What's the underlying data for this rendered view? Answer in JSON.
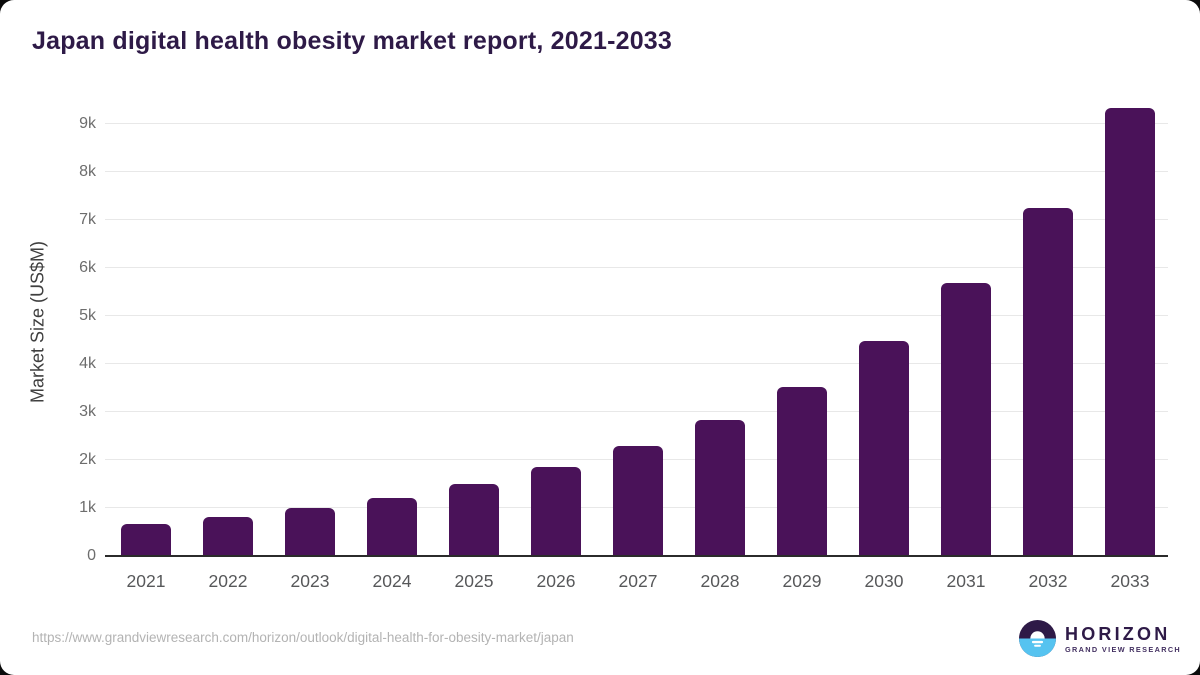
{
  "page": {
    "title": "Japan digital health obesity market report, 2021-2033"
  },
  "chart_data": {
    "type": "bar",
    "title": "Japan digital health obesity market report, 2021-2033",
    "categories": [
      "2021",
      "2022",
      "2023",
      "2024",
      "2025",
      "2026",
      "2027",
      "2028",
      "2029",
      "2030",
      "2031",
      "2032",
      "2033"
    ],
    "values": [
      670,
      810,
      1000,
      1210,
      1500,
      1860,
      2300,
      2840,
      3530,
      4470,
      5680,
      7240,
      9330
    ],
    "xlabel": "",
    "ylabel": "Market Size (US$M)",
    "yticks": [
      0,
      1000,
      2000,
      3000,
      4000,
      5000,
      6000,
      7000,
      8000,
      9000
    ],
    "ytick_labels": [
      "0",
      "1k",
      "2k",
      "3k",
      "4k",
      "5k",
      "6k",
      "7k",
      "8k",
      "9k"
    ],
    "ylim": [
      0,
      9500
    ],
    "grid": true,
    "legend": "none",
    "bar_color": "#4A1259"
  },
  "footer": {
    "source_url": "https://www.grandviewresearch.com/horizon/outlook/digital-health-for-obesity-market/japan",
    "logo": {
      "brand": "HORIZON",
      "sub_brand": "GRAND VIEW RESEARCH",
      "mark_icon": "sun-horizon-icon",
      "mark_top_color": "#2E1A47",
      "mark_bottom_color": "#56C3F0"
    }
  },
  "colors": {
    "title_text": "#2E1A47",
    "bar": "#4A1259",
    "gridline": "#e8e8e8",
    "axis_line": "#2b2b2b",
    "tick_text": "#6d6d6d",
    "url_text": "#b3b3b3"
  }
}
